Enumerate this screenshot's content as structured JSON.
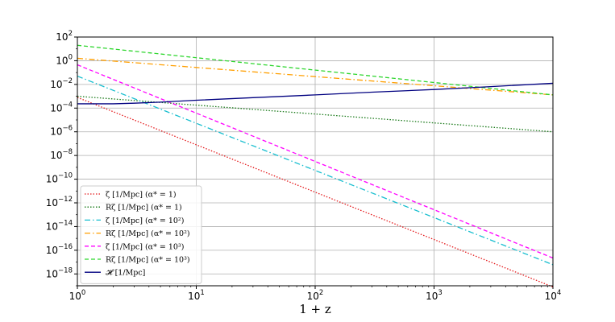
{
  "chart_data": {
    "type": "line",
    "xlabel": "1 + z",
    "xscale": "log",
    "yscale": "log",
    "xlim": [
      1,
      10000
    ],
    "ylim": [
      1e-19,
      100.0
    ],
    "xticks": [
      {
        "value": 1,
        "base": "10",
        "exp": "0"
      },
      {
        "value": 10,
        "base": "10",
        "exp": "1"
      },
      {
        "value": 100,
        "base": "10",
        "exp": "2"
      },
      {
        "value": 1000,
        "base": "10",
        "exp": "3"
      },
      {
        "value": 10000,
        "base": "10",
        "exp": "4"
      }
    ],
    "yticks": [
      {
        "value": 100.0,
        "base": "10",
        "exp": "2"
      },
      {
        "value": 1,
        "base": "10",
        "exp": "0"
      },
      {
        "value": 0.01,
        "base": "10",
        "exp": "−2"
      },
      {
        "value": 0.0001,
        "base": "10",
        "exp": "−4"
      },
      {
        "value": 1e-06,
        "base": "10",
        "exp": "−6"
      },
      {
        "value": 1e-08,
        "base": "10",
        "exp": "−8"
      },
      {
        "value": 1e-10,
        "base": "10",
        "exp": "−10"
      },
      {
        "value": 1e-12,
        "base": "10",
        "exp": "−12"
      },
      {
        "value": 1e-14,
        "base": "10",
        "exp": "−14"
      },
      {
        "value": 1e-16,
        "base": "10",
        "exp": "−16"
      },
      {
        "value": 1e-18,
        "base": "10",
        "exp": "−18"
      }
    ],
    "grid": true,
    "legend_position": "lower-left",
    "series": [
      {
        "name": "ζ [1/Mpc] (α* = 1)",
        "color": "#e41a1c",
        "dash": "dotted",
        "x": [
          1,
          10000
        ],
        "y": [
          0.0008,
          8e-20
        ]
      },
      {
        "name": "Rζ [1/Mpc] (α* = 1)",
        "color": "#1a7a1a",
        "dash": "dotted",
        "x": [
          1,
          10000
        ],
        "y": [
          0.001,
          1e-06
        ]
      },
      {
        "name": "ζ [1/Mpc] (α* = 10²)",
        "color": "#17becf",
        "dash": "dashdot",
        "x": [
          1,
          10000
        ],
        "y": [
          0.05,
          6e-18
        ]
      },
      {
        "name": "Rζ [1/Mpc] (α* = 10²)",
        "color": "#ff9f00",
        "dash": "dashdot",
        "x": [
          1,
          10000
        ],
        "y": [
          1.6,
          0.0013
        ]
      },
      {
        "name": "ζ [1/Mpc] (α* = 10³)",
        "color": "#ff00ff",
        "dash": "dashed",
        "x": [
          1,
          10000
        ],
        "y": [
          0.45,
          2.2e-17
        ]
      },
      {
        "name": "Rζ [1/Mpc] (α* = 10³)",
        "color": "#2ed62e",
        "dash": "dashed",
        "x": [
          1,
          10000
        ],
        "y": [
          20,
          0.0013
        ]
      },
      {
        "name": "𝓗 [1/Mpc]",
        "color": "#000080",
        "dash": "solid",
        "x": [
          1,
          1.5,
          2,
          3,
          5,
          10,
          30,
          100,
          300,
          1000,
          3000,
          10000
        ],
        "y": [
          0.00023,
          0.00023,
          0.00023,
          0.00026,
          0.00032,
          0.00046,
          0.00076,
          0.0013,
          0.0022,
          0.0037,
          0.0065,
          0.0125
        ]
      }
    ]
  }
}
